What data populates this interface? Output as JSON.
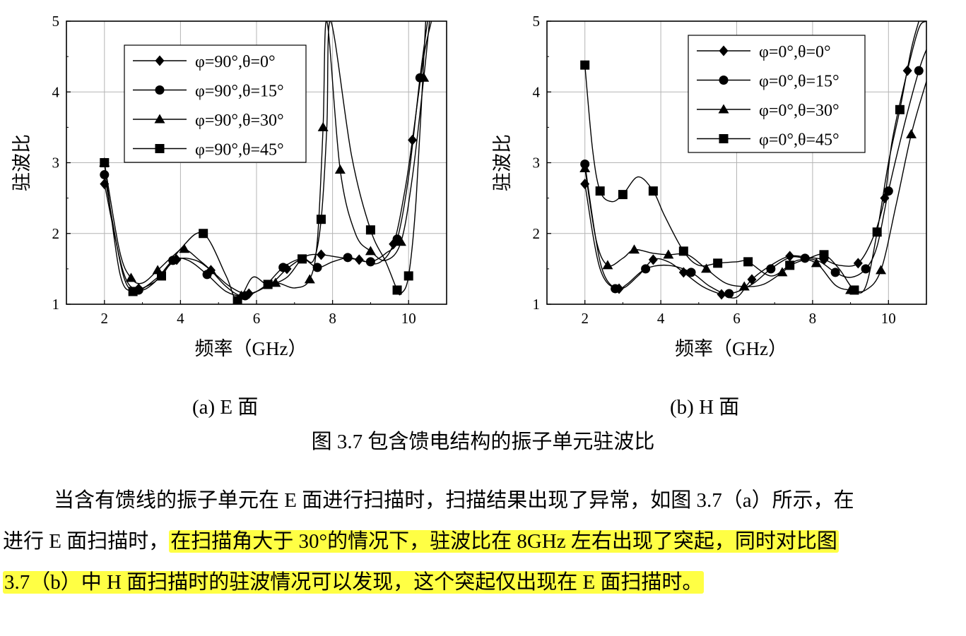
{
  "chart_data": [
    {
      "type": "line",
      "panel": "a",
      "caption": "(a) E 面",
      "xlabel": "频率（GHz）",
      "ylabel": "驻波比",
      "xlim": [
        1,
        11
      ],
      "ylim": [
        1,
        5
      ],
      "xticks": [
        2,
        4,
        6,
        8,
        10
      ],
      "yticks": [
        1,
        2,
        3,
        4,
        5
      ],
      "grid": true,
      "legend_position": "top-left",
      "series": [
        {
          "name": "φ=90°,θ=0°",
          "marker": "diamond",
          "x": [
            2.0,
            2.5,
            2.9,
            3.4,
            3.9,
            4.4,
            4.8,
            5.3,
            5.8,
            6.4,
            6.8,
            7.3,
            7.7,
            8.2,
            8.7,
            9.2,
            9.6,
            9.9,
            10.1,
            10.4,
            10.6
          ],
          "y": [
            2.7,
            1.45,
            1.22,
            1.38,
            1.63,
            1.62,
            1.48,
            1.25,
            1.15,
            1.3,
            1.5,
            1.68,
            1.7,
            1.66,
            1.63,
            1.58,
            1.85,
            2.6,
            3.32,
            4.5,
            5.0
          ]
        },
        {
          "name": "φ=90°,θ=15°",
          "marker": "circle",
          "x": [
            2.0,
            2.5,
            2.9,
            3.3,
            3.8,
            4.2,
            4.7,
            5.2,
            5.7,
            6.2,
            6.7,
            7.2,
            7.6,
            8.0,
            8.4,
            8.6,
            9.0,
            9.4,
            9.7,
            10.0,
            10.3,
            10.5
          ],
          "y": [
            2.83,
            1.4,
            1.2,
            1.3,
            1.62,
            1.62,
            1.42,
            1.18,
            1.12,
            1.25,
            1.52,
            1.64,
            1.52,
            1.6,
            1.66,
            1.64,
            1.6,
            1.72,
            1.92,
            2.8,
            4.2,
            5.0
          ]
        },
        {
          "name": "φ=90°,θ=30°",
          "marker": "triangle",
          "x": [
            2.0,
            2.4,
            2.7,
            3.0,
            3.4,
            3.8,
            4.1,
            4.5,
            4.8,
            5.2,
            5.6,
            6.0,
            6.5,
            7.0,
            7.4,
            7.6,
            7.75,
            7.85,
            8.2,
            8.6,
            9.0,
            9.4,
            9.8,
            10.1,
            10.4,
            10.55
          ],
          "y": [
            3.0,
            1.75,
            1.37,
            1.3,
            1.48,
            1.68,
            1.78,
            1.62,
            1.48,
            1.25,
            1.12,
            1.18,
            1.3,
            1.23,
            1.35,
            1.9,
            3.5,
            5.0,
            2.9,
            2.0,
            1.75,
            1.62,
            1.88,
            2.8,
            4.2,
            5.0
          ]
        },
        {
          "name": "φ=90°,θ=45°",
          "marker": "square",
          "x": [
            2.0,
            2.4,
            2.75,
            3.1,
            3.5,
            4.0,
            4.6,
            5.2,
            5.5,
            5.9,
            6.3,
            6.8,
            7.2,
            7.5,
            7.7,
            7.85,
            7.95,
            8.5,
            9.0,
            9.4,
            9.7,
            9.8,
            10.0,
            10.2,
            10.45
          ],
          "y": [
            3.0,
            1.45,
            1.18,
            1.25,
            1.4,
            1.78,
            2.0,
            1.4,
            1.05,
            1.38,
            1.28,
            1.38,
            1.64,
            1.62,
            2.2,
            3.5,
            5.0,
            3.1,
            2.05,
            1.6,
            1.2,
            1.15,
            1.4,
            2.5,
            5.0
          ]
        }
      ]
    },
    {
      "type": "line",
      "panel": "b",
      "caption": "(b) H 面",
      "xlabel": "频率（GHz）",
      "ylabel": "驻波比",
      "xlim": [
        1,
        11
      ],
      "ylim": [
        1,
        5
      ],
      "xticks": [
        2,
        4,
        6,
        8,
        10
      ],
      "yticks": [
        1,
        2,
        3,
        4,
        5
      ],
      "grid": true,
      "legend_position": "top-right",
      "series": [
        {
          "name": "φ=0°,θ=0°",
          "marker": "diamond",
          "x": [
            2.0,
            2.4,
            2.9,
            3.4,
            3.8,
            4.2,
            4.6,
            5.1,
            5.6,
            6.0,
            6.4,
            6.9,
            7.4,
            7.9,
            8.3,
            8.7,
            9.2,
            9.6,
            9.9,
            10.1,
            10.5,
            10.8,
            11.0
          ],
          "y": [
            2.7,
            1.5,
            1.22,
            1.4,
            1.63,
            1.6,
            1.45,
            1.25,
            1.14,
            1.1,
            1.35,
            1.55,
            1.68,
            1.66,
            1.63,
            1.55,
            1.58,
            1.95,
            2.5,
            3.32,
            4.3,
            4.9,
            5.0
          ]
        },
        {
          "name": "φ=0°,θ=15°",
          "marker": "circle",
          "x": [
            2.0,
            2.4,
            2.8,
            3.1,
            3.6,
            4.2,
            4.8,
            5.3,
            5.8,
            6.4,
            6.9,
            7.4,
            7.8,
            8.2,
            8.6,
            9.0,
            9.4,
            9.7,
            10.0,
            10.4,
            10.8,
            11.0
          ],
          "y": [
            2.98,
            1.6,
            1.22,
            1.28,
            1.5,
            1.55,
            1.45,
            1.25,
            1.15,
            1.28,
            1.5,
            1.66,
            1.65,
            1.6,
            1.45,
            1.38,
            1.5,
            1.82,
            2.6,
            3.5,
            4.3,
            4.6
          ]
        },
        {
          "name": "φ=0°,θ=30°",
          "marker": "triangle",
          "x": [
            2.0,
            2.3,
            2.6,
            3.0,
            3.3,
            3.8,
            4.2,
            4.7,
            5.2,
            5.7,
            6.2,
            6.7,
            7.2,
            7.6,
            8.1,
            8.6,
            9.0,
            9.4,
            9.8,
            10.2,
            10.6,
            11.0
          ],
          "y": [
            2.92,
            1.9,
            1.55,
            1.65,
            1.77,
            1.72,
            1.7,
            1.7,
            1.5,
            1.3,
            1.25,
            1.28,
            1.45,
            1.62,
            1.58,
            1.27,
            1.2,
            1.2,
            1.48,
            2.4,
            3.4,
            4.15
          ]
        },
        {
          "name": "φ=0°,θ=45°",
          "marker": "square",
          "x": [
            2.0,
            2.2,
            2.4,
            2.7,
            3.0,
            3.4,
            3.8,
            4.1,
            4.6,
            5.0,
            5.5,
            6.0,
            6.3,
            6.9,
            7.4,
            7.9,
            8.3,
            8.7,
            9.1,
            9.4,
            9.7,
            10.0,
            10.3,
            10.6,
            10.8
          ],
          "y": [
            4.38,
            3.2,
            2.6,
            2.45,
            2.55,
            2.8,
            2.6,
            2.25,
            1.75,
            1.55,
            1.58,
            1.6,
            1.6,
            1.4,
            1.55,
            1.65,
            1.7,
            1.5,
            1.2,
            1.25,
            2.02,
            3.0,
            3.75,
            4.6,
            5.0
          ]
        }
      ]
    }
  ],
  "figure_caption": "图 3.7  包含馈电结构的振子单元驻波比",
  "paragraph": {
    "line1": "当含有馈线的振子单元在 E 面进行扫描时，扫描结果出现了异常，如图 3.7（a）所示，在",
    "line2_plain": "进行 E 面扫描时，",
    "line2_highlight": "在扫描角大于 30°的情况下，驻波比在 8GHz 左右出现了突起，同时对比图",
    "line3_highlight": "3.7（b）中 H 面扫描时的驻波情况可以发现，这个突起仅出现在 E 面扫描时。",
    "highlight_color": "#ffff44"
  }
}
